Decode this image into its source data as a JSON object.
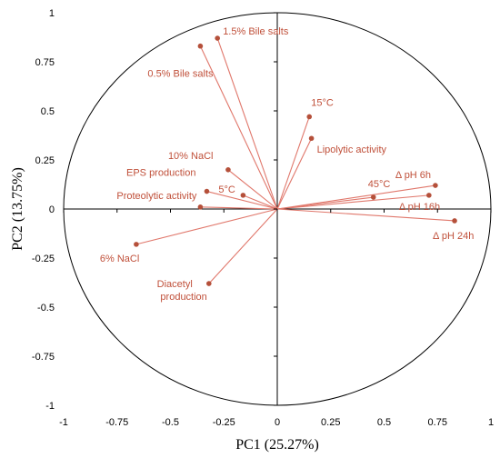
{
  "chart_data": {
    "type": "scatter",
    "subtype": "pca-correlation-circle",
    "title": "",
    "xlabel": "PC1 (25.27%)",
    "ylabel": "PC2 (13.75%)",
    "xlim": [
      -1,
      1
    ],
    "ylim": [
      -1,
      1
    ],
    "xticks": [
      "-1",
      "-0.75",
      "-0.5",
      "-0.25",
      "0",
      "0.25",
      "0.5",
      "0.75",
      "1"
    ],
    "yticks": [
      "1",
      "0.75",
      "0.5",
      "0.25",
      "0",
      "-0.25",
      "-0.5",
      "-0.75",
      "-1"
    ],
    "grid": false,
    "unit_circle": true,
    "colors": {
      "vector": "#e0776b",
      "point": "#b5503a",
      "label": "#c0503a",
      "axis": "#000000",
      "circle": "#000000"
    },
    "points": [
      {
        "label": "1.5% Bile salts",
        "x": -0.28,
        "y": 0.87
      },
      {
        "label": "0.5% Bile salts",
        "x": -0.36,
        "y": 0.83
      },
      {
        "label": "15°C",
        "x": 0.15,
        "y": 0.47
      },
      {
        "label": "Lipolytic activity",
        "x": 0.16,
        "y": 0.36
      },
      {
        "label": "10% NaCl",
        "x": -0.23,
        "y": 0.2
      },
      {
        "label": "EPS production",
        "x": -0.33,
        "y": 0.09
      },
      {
        "label": "Proteolytic activity",
        "x": -0.36,
        "y": 0.01
      },
      {
        "label": "5°C",
        "x": -0.16,
        "y": 0.07
      },
      {
        "label": "45°C",
        "x": 0.45,
        "y": 0.06
      },
      {
        "label": "Δ pH 6h",
        "x": 0.74,
        "y": 0.12
      },
      {
        "label": "Δ pH 16h",
        "x": 0.71,
        "y": 0.07
      },
      {
        "label": "Δ pH 24h",
        "x": 0.83,
        "y": -0.06
      },
      {
        "label": "6% NaCl",
        "x": -0.66,
        "y": -0.18
      },
      {
        "label": "Diacetyl production",
        "x": -0.32,
        "y": -0.38
      }
    ]
  }
}
